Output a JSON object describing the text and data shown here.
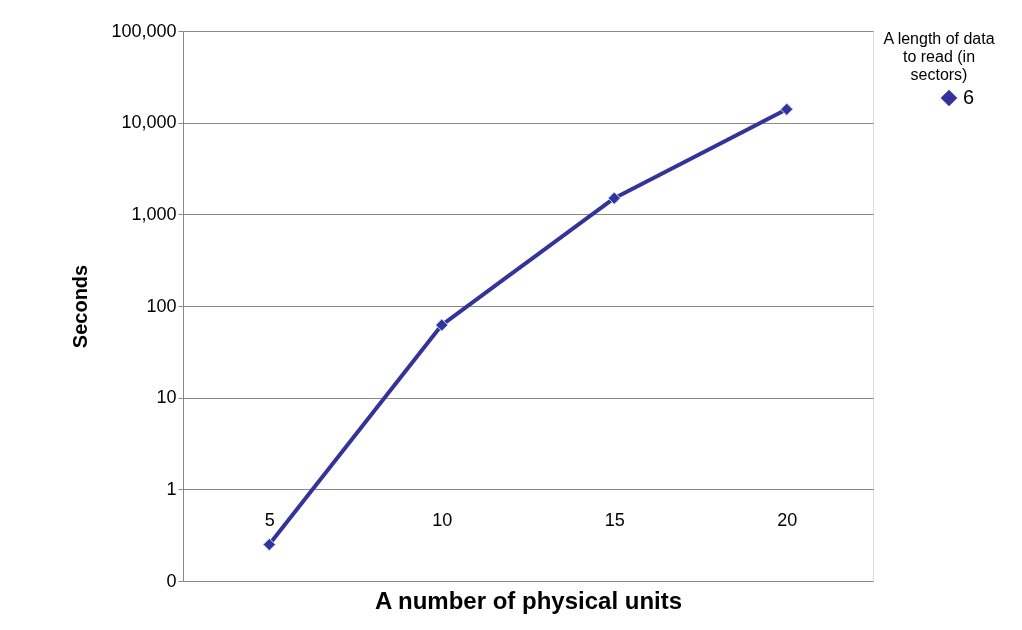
{
  "chart_data": {
    "type": "line",
    "xlabel": "A number of physical units",
    "ylabel": "Seconds",
    "legend_title": "A length of data to read (in sectors)",
    "categories": [
      "5",
      "10",
      "15",
      "20"
    ],
    "series": [
      {
        "name": "6",
        "color": "#333399",
        "values": [
          0.25,
          62,
          1500,
          14000
        ]
      }
    ],
    "log": "y",
    "ylim": [
      0.1,
      100000
    ],
    "yticks": [
      {
        "value": 0.1,
        "label": "0"
      },
      {
        "value": 1,
        "label": "1"
      },
      {
        "value": 10,
        "label": "10"
      },
      {
        "value": 100,
        "label": "100"
      },
      {
        "value": 1000,
        "label": "1,000"
      },
      {
        "value": 10000,
        "label": "10,000"
      },
      {
        "value": 100000,
        "label": "100,000"
      }
    ],
    "grid": "y",
    "legend": "right",
    "marker": "diamond",
    "line_style": "solid"
  }
}
